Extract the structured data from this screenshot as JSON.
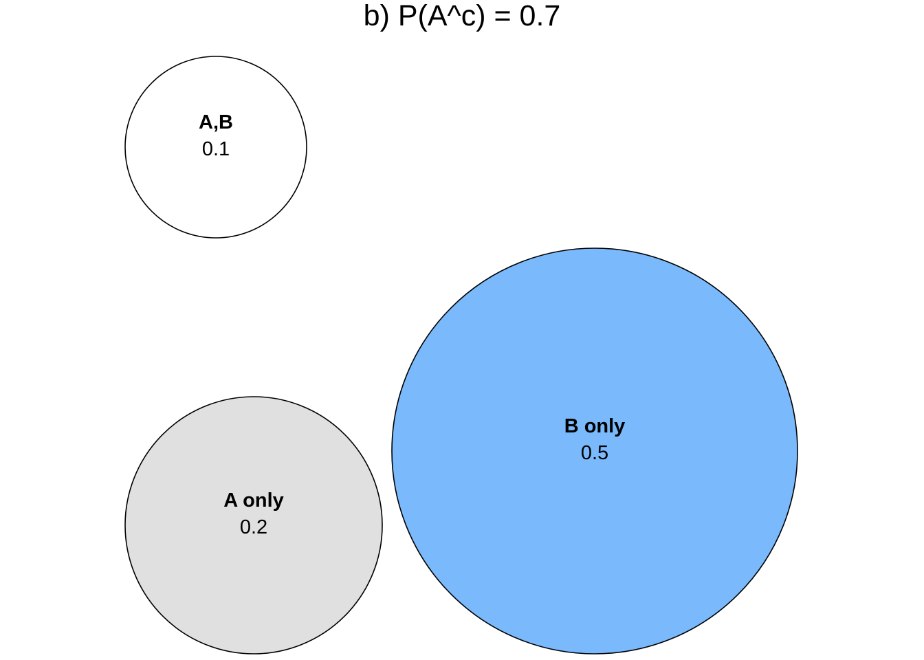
{
  "title": "b) P(A^c) = 0.7",
  "bubbles": [
    {
      "label": "A,B",
      "value": "0.1",
      "fill": "#ffffff",
      "highlighted": false
    },
    {
      "label": "A only",
      "value": "0.2",
      "fill": "#e0e0e0",
      "highlighted": false
    },
    {
      "label": "B only",
      "value": "0.5",
      "fill": "#79b9fc",
      "highlighted": true
    }
  ]
}
